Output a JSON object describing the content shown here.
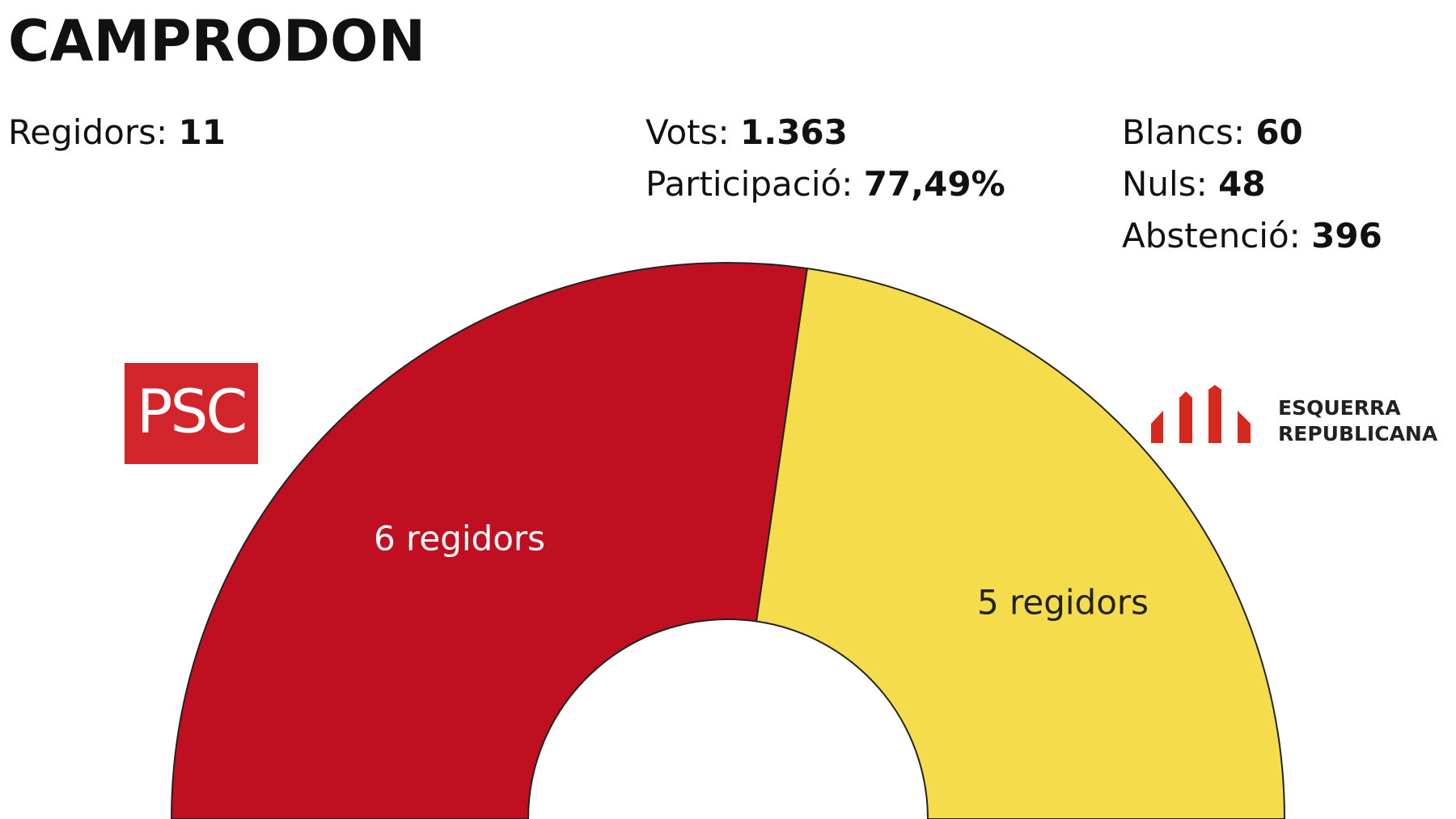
{
  "chart_data": {
    "type": "half-donut",
    "title": "CAMPRODON",
    "categories": [
      "PSC",
      "ESQUERRA REPUBLICANA"
    ],
    "values": [
      6,
      5
    ],
    "value_labels": [
      "6 regidors",
      "5 regidors"
    ],
    "colors": [
      "#c10f22",
      "#f5dc4c"
    ],
    "label_colors": [
      "#ffffff",
      "#222222"
    ],
    "stats": [
      [
        {
          "label": "Regidors:",
          "value": 11
        }
      ],
      [
        {
          "label": "Vots:",
          "value": {
            "value": 1363,
            "label": "1.363"
          }
        },
        {
          "label": "Participació:",
          "value": {
            "value": 77.49,
            "label": "77,49%"
          }
        }
      ],
      [
        {
          "label": "Blancs:",
          "value": 60
        },
        {
          "label": "Nuls:",
          "value": 48
        },
        {
          "label": "Abstenció:",
          "value": 396
        }
      ]
    ]
  }
}
